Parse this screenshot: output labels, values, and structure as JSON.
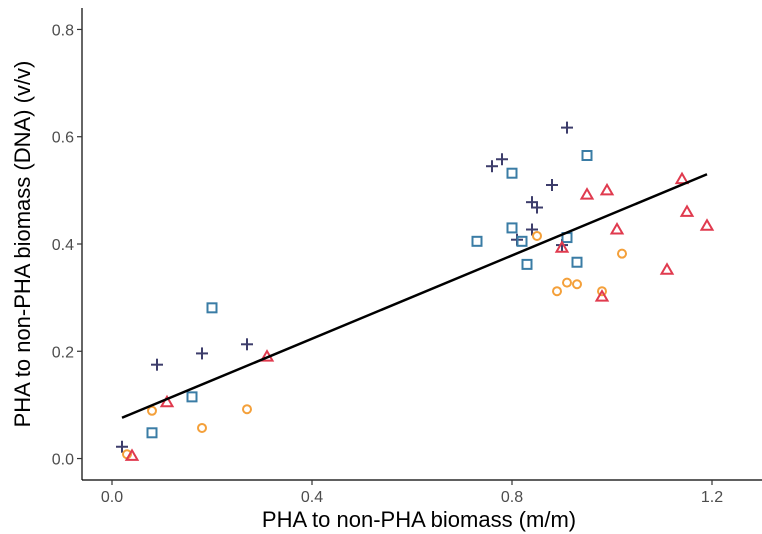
{
  "chart_data": {
    "type": "scatter",
    "title": "",
    "xlabel": "PHA to non-PHA biomass (m/m)",
    "ylabel": "PHA to non-PHA biomass (DNA) (v/v)",
    "xlim": [
      -0.06,
      1.3
    ],
    "ylim": [
      -0.04,
      0.84
    ],
    "x_ticks": [
      0.0,
      0.4,
      0.8,
      1.2
    ],
    "x_tick_labels": [
      "0.0",
      "0.4",
      "0.8",
      "1.2"
    ],
    "y_ticks": [
      0.0,
      0.2,
      0.4,
      0.6,
      0.8
    ],
    "y_tick_labels": [
      "0.0",
      "0.2",
      "0.4",
      "0.6",
      "0.8"
    ],
    "grid": false,
    "legend": "none",
    "series": [
      {
        "marker": "plus",
        "color": "#3d3d6b",
        "points": [
          [
            0.02,
            0.022
          ],
          [
            0.09,
            0.175
          ],
          [
            0.18,
            0.196
          ],
          [
            0.27,
            0.213
          ],
          [
            0.76,
            0.545
          ],
          [
            0.78,
            0.558
          ],
          [
            0.84,
            0.478
          ],
          [
            0.85,
            0.468
          ],
          [
            0.84,
            0.427
          ],
          [
            0.81,
            0.408
          ],
          [
            0.88,
            0.51
          ],
          [
            0.91,
            0.617
          ],
          [
            0.9,
            0.398
          ]
        ]
      },
      {
        "marker": "square",
        "color": "#3a7ca5",
        "points": [
          [
            0.08,
            0.048
          ],
          [
            0.16,
            0.115
          ],
          [
            0.2,
            0.281
          ],
          [
            0.73,
            0.405
          ],
          [
            0.8,
            0.532
          ],
          [
            0.8,
            0.43
          ],
          [
            0.82,
            0.405
          ],
          [
            0.83,
            0.362
          ],
          [
            0.91,
            0.412
          ],
          [
            0.93,
            0.366
          ],
          [
            0.95,
            0.565
          ]
        ]
      },
      {
        "marker": "circle",
        "color": "#f4a03a",
        "points": [
          [
            0.03,
            0.008
          ],
          [
            0.08,
            0.089
          ],
          [
            0.18,
            0.057
          ],
          [
            0.27,
            0.092
          ],
          [
            0.85,
            0.415
          ],
          [
            0.89,
            0.312
          ],
          [
            0.91,
            0.328
          ],
          [
            0.93,
            0.325
          ],
          [
            0.98,
            0.312
          ],
          [
            1.02,
            0.382
          ]
        ]
      },
      {
        "marker": "triangle",
        "color": "#e03a4e",
        "points": [
          [
            0.04,
            0.005
          ],
          [
            0.11,
            0.105
          ],
          [
            0.31,
            0.19
          ],
          [
            0.9,
            0.393
          ],
          [
            0.95,
            0.492
          ],
          [
            0.98,
            0.302
          ],
          [
            0.99,
            0.5
          ],
          [
            1.01,
            0.427
          ],
          [
            1.11,
            0.352
          ],
          [
            1.14,
            0.521
          ],
          [
            1.15,
            0.46
          ],
          [
            1.19,
            0.434
          ]
        ]
      }
    ],
    "fit_line": {
      "type": "linear",
      "color": "#000000",
      "points": [
        [
          0.02,
          0.076
        ],
        [
          1.19,
          0.53
        ]
      ]
    }
  }
}
